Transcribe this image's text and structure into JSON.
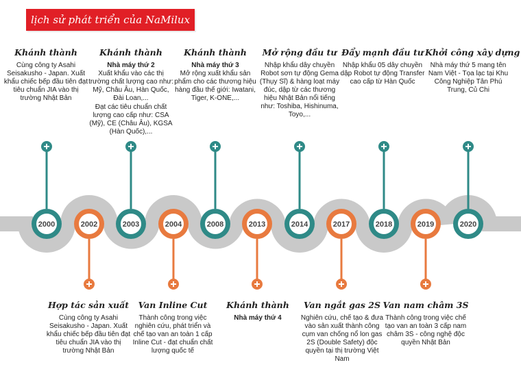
{
  "title": "lịch sử phát triển của NaMilux",
  "colors": {
    "teal": "#2f8a87",
    "orange": "#e87a3f",
    "grey": "#c9c9c9",
    "red": "#e11f26",
    "dark": "#444444"
  },
  "years": [
    "2000",
    "2002",
    "2003",
    "2004",
    "2008",
    "2013",
    "2014",
    "2017",
    "2018",
    "2019",
    "2020"
  ],
  "top": [
    {
      "heading": "Khánh thành",
      "sub": "",
      "lines": [
        "Cùng công ty Asahi Seisakusho - Japan. Xuất khẩu chiếc bếp đầu tiên đạt tiêu chuẩn JIA vào thị trường Nhật Bản"
      ]
    },
    {
      "heading": "Khánh thành",
      "sub": "Nhà máy thứ 2",
      "lines": [
        "Xuất khẩu vào các thị trường chất lượng cao như: Mỹ, Châu Âu, Hàn Quốc, Đài Loan,...",
        "Đạt các tiêu chuẩn chất lượng cao cấp như: CSA (Mỹ), CE (Châu Âu), KGSA (Hàn Quốc),..."
      ]
    },
    {
      "heading": "Khánh thành",
      "sub": "Nhà máy thứ 3",
      "lines": [
        "Mở rộng xuất khẩu sản phẩm cho các thương hiệu hàng đầu thế giới: Iwatani, Tiger, K-ONE,..."
      ]
    },
    {
      "heading": "Mở rộng đầu tư",
      "sub": "",
      "lines": [
        "Nhập khẩu dây chuyền Robot sơn tự động Gema (Thụy Sĩ) & hàng loạt máy đúc, dập từ các thương hiệu Nhật Bản nổi tiếng như: Toshiba, Hishinuma, Toyo,..."
      ]
    },
    {
      "heading": "Đẩy mạnh đầu tư",
      "sub": "",
      "lines": [
        "Nhập khẩu 05 dây chuyền dập Robot tự động Transfer cao cấp từ Hàn Quốc"
      ]
    },
    {
      "heading": "Khởi công xây dựng",
      "sub": "",
      "lines": [
        "Nhà máy thứ 5 mang tên Nam Việt - Tọa lạc tại Khu Công Nghiệp Tân Phú Trung, Củ Chi"
      ]
    }
  ],
  "bottom": [
    {
      "heading": "Hợp tác sản xuất",
      "sub": "",
      "lines": [
        "Cùng công ty Asahi Seisakusho - Japan. Xuất khẩu chiếc bếp đầu tiên đạt tiêu chuẩn JIA vào thị trường Nhật Bản"
      ]
    },
    {
      "heading": "Van Inline Cut",
      "sub": "",
      "lines": [
        "Thành công trong việc nghiên cứu, phát triển và chế tạo van an toàn 1 cấp Inline Cut - đạt chuẩn chất lượng quốc tế"
      ]
    },
    {
      "heading": "Khánh thành",
      "sub": "Nhà máy thứ 4",
      "lines": []
    },
    {
      "heading": "Van ngắt gas 2S",
      "sub": "",
      "lines": [
        "Nghiên cứu, chế tạo & đưa vào sản xuất thành công cụm van chống nổ lon gas 2S (Double Safety) độc quyền tại thị trường Việt Nam"
      ]
    },
    {
      "heading": "Van nam châm 3S",
      "sub": "",
      "lines": [
        "Thành công trong việc chế tạo van an toàn 3 cấp nam châm 3S - công nghệ độc quyền Nhật Bản"
      ]
    }
  ]
}
